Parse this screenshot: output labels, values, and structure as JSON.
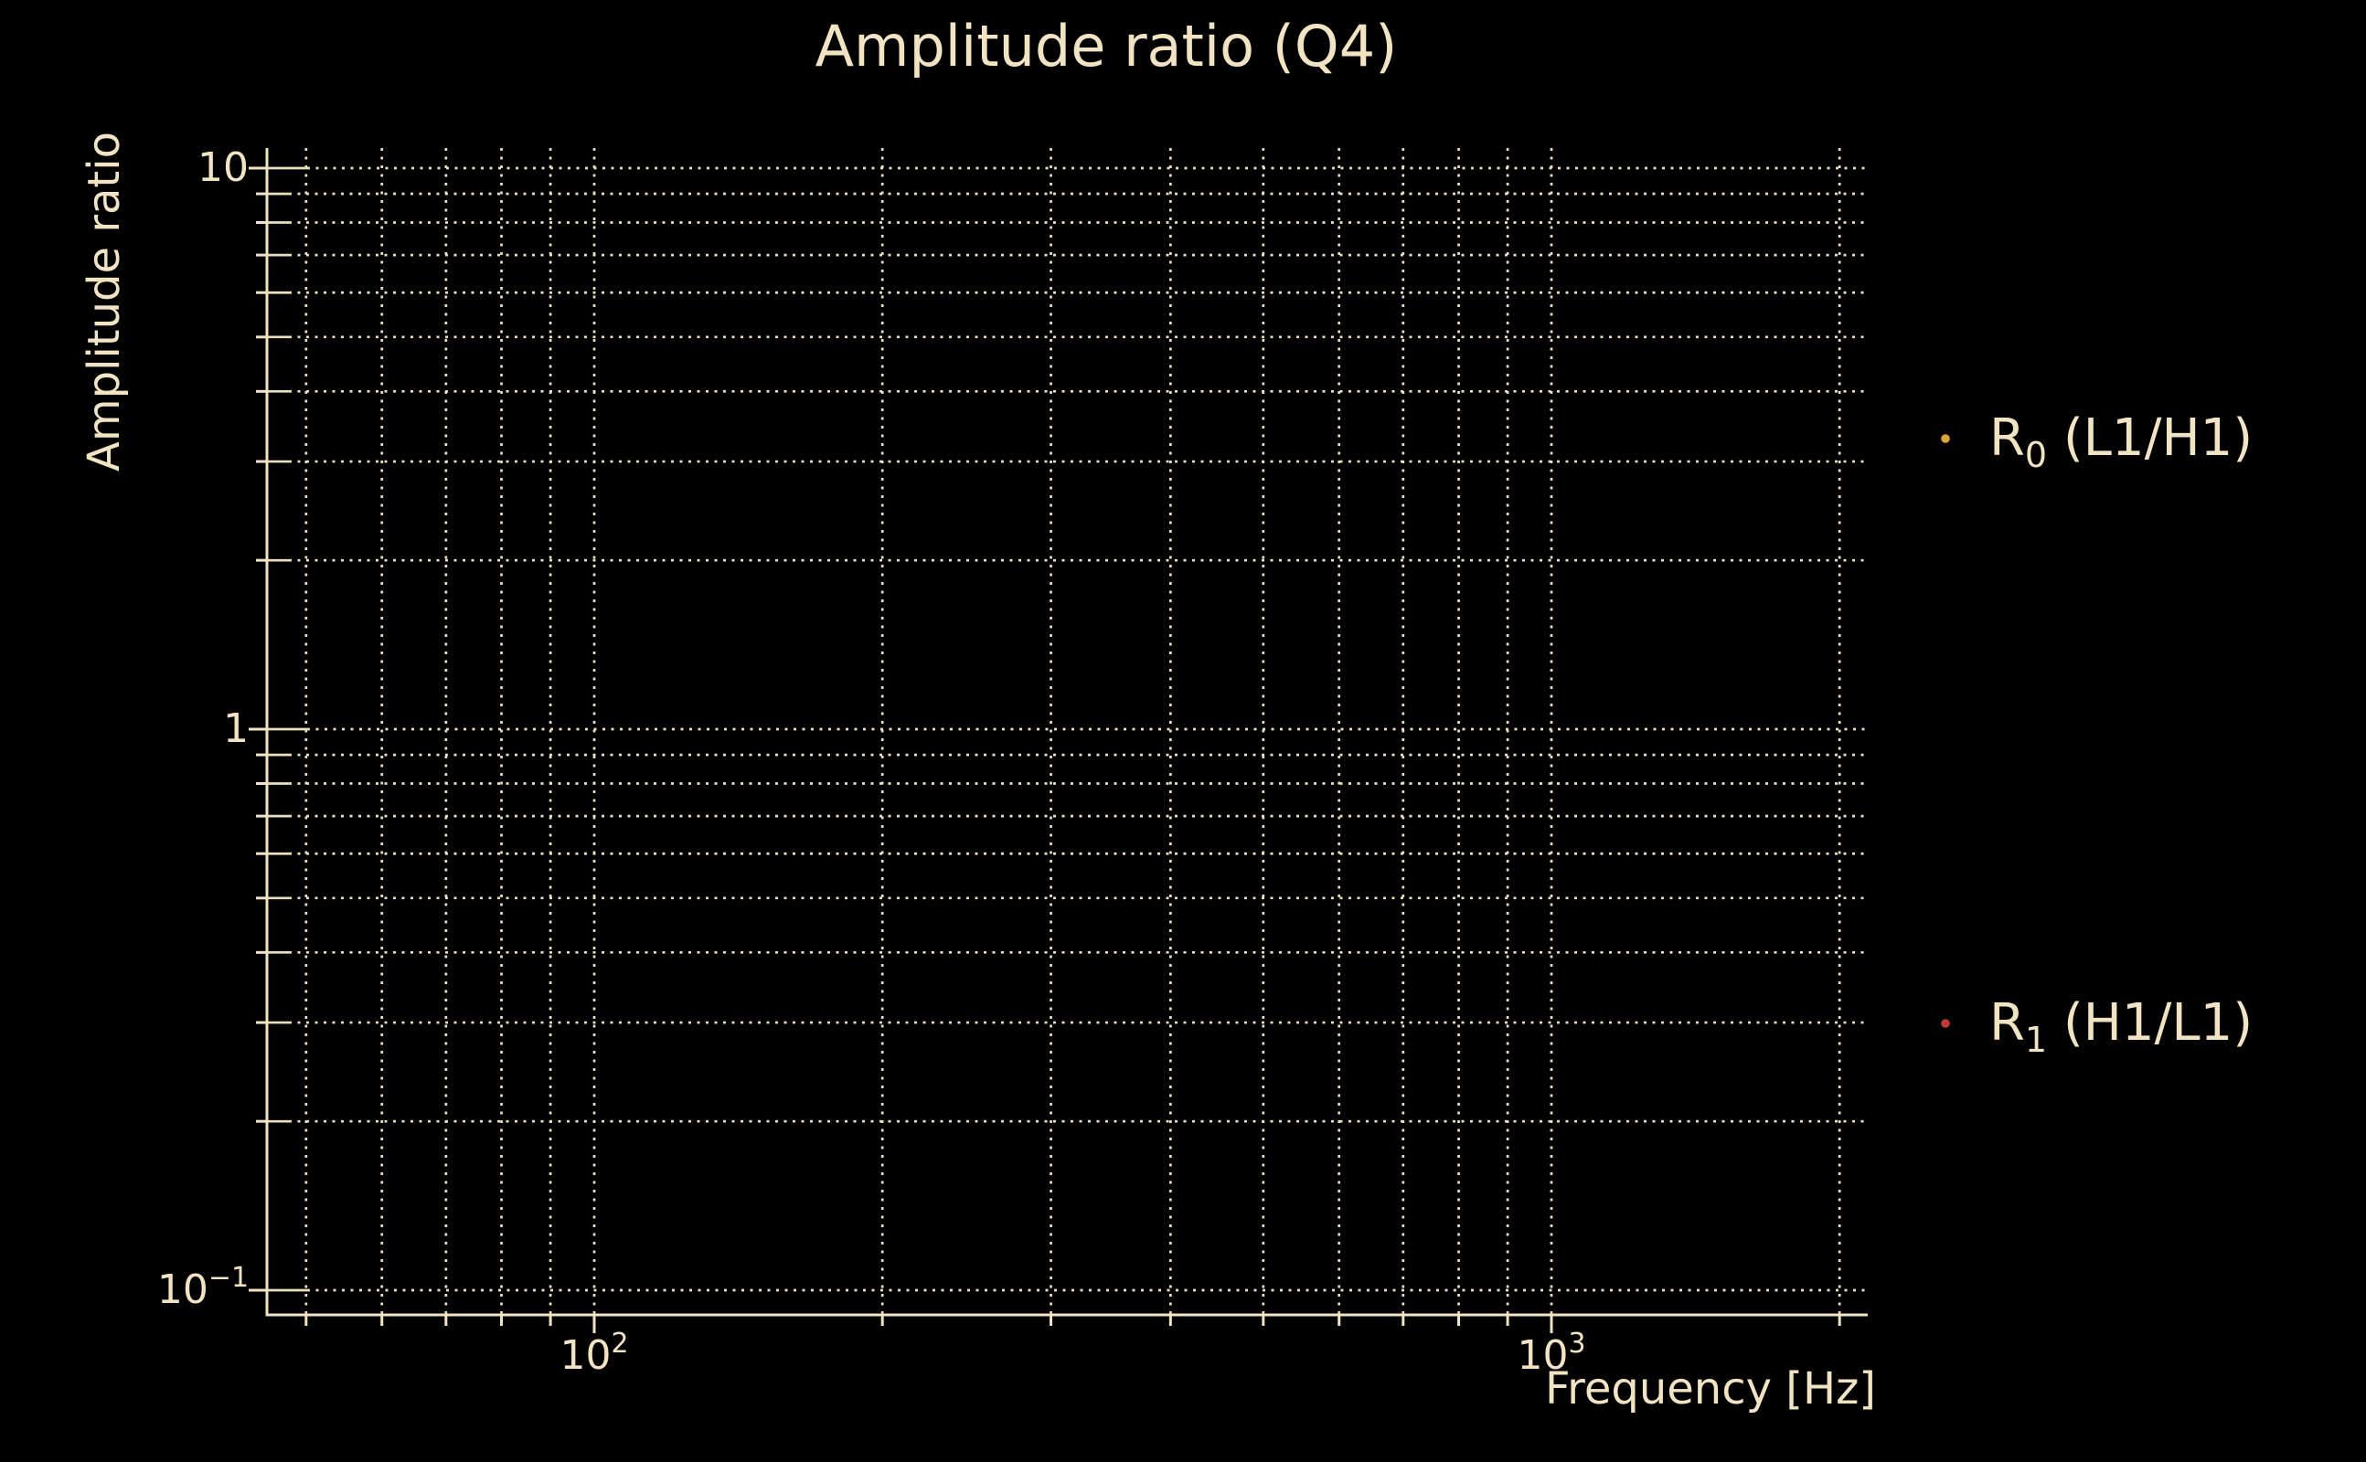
{
  "chart_data": {
    "type": "scatter",
    "title": "Amplitude ratio (Q4)",
    "xlabel": "Frequency [Hz]",
    "ylabel": "Amplitude ratio",
    "x_scale": "log",
    "y_scale": "log",
    "xlim": [
      45,
      2150
    ],
    "ylim": [
      0.09,
      10.9
    ],
    "grid": {
      "which": "both",
      "linestyle": "dotted"
    },
    "x_ticks": [
      {
        "value": 100,
        "base": "10",
        "exp": "2"
      },
      {
        "value": 1000,
        "base": "10",
        "exp": "3"
      }
    ],
    "y_ticks": [
      {
        "value": 10,
        "base": "10",
        "exp": ""
      },
      {
        "value": 1,
        "base": "1",
        "exp": ""
      },
      {
        "value": 0.1,
        "base": "10",
        "exp": "−1"
      }
    ],
    "x_major_gridlines": [
      100,
      1000
    ],
    "x_minor_gridlines": [
      50,
      60,
      70,
      80,
      90,
      200,
      300,
      400,
      500,
      600,
      700,
      800,
      900,
      2000
    ],
    "y_major_gridlines": [
      10,
      1,
      0.1
    ],
    "y_minor_gridlines": [
      9,
      8,
      7,
      6,
      5,
      4,
      3,
      2,
      0.9,
      0.8,
      0.7,
      0.6,
      0.5,
      0.4,
      0.3,
      0.2
    ],
    "series": [
      {
        "label_prefix": "R",
        "label_sub": "0",
        "label_rest": " (L1/H1)",
        "color": "#dfa23c",
        "points": []
      },
      {
        "label_prefix": "R",
        "label_sub": "1",
        "label_rest": " (H1/L1)",
        "color": "#c13b28",
        "points": []
      }
    ],
    "legend_position": "right"
  },
  "colors": {
    "background": "#000000",
    "text": "#f2e4c2",
    "grid": "#ebdfbd",
    "spine": "#f2e4c2"
  }
}
